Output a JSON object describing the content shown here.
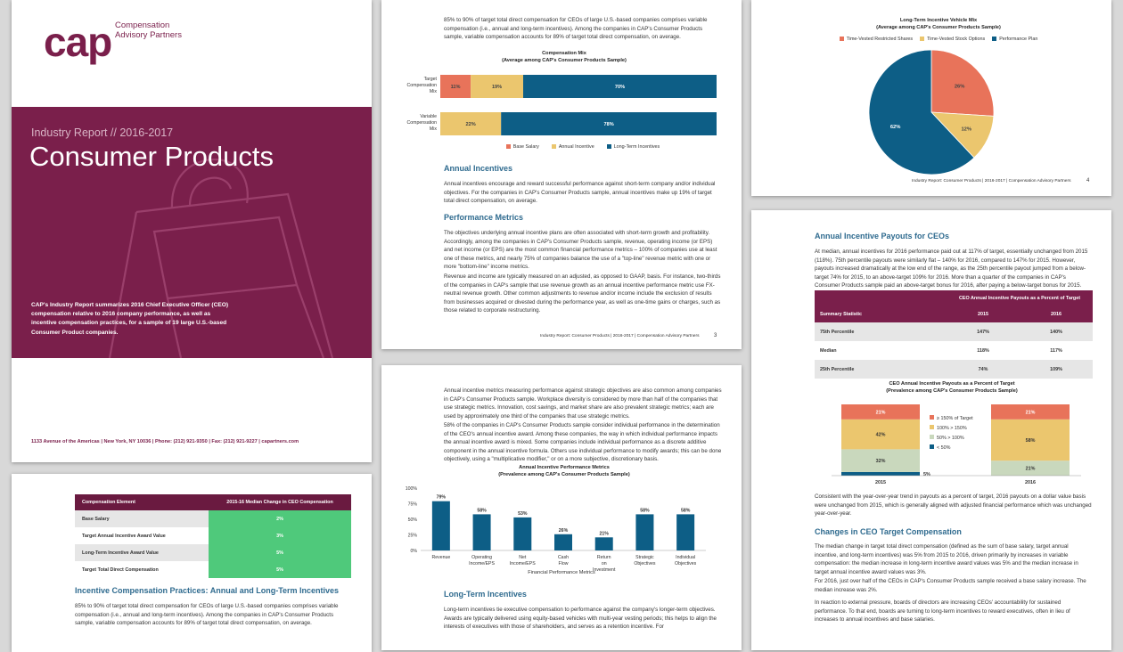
{
  "colors": {
    "brand": "#7a1f4b",
    "blue": "#0d5e86",
    "orange": "#e8735a",
    "yellow": "#ebc66e",
    "green": "#4fc97b",
    "sage": "#c9d8bd"
  },
  "cover": {
    "brand_line1": "Compensation",
    "brand_line2": "Advisory Partners",
    "logo": "cap",
    "kicker": "Industry Report // 2016-2017",
    "title": "Consumer Products",
    "summary": "CAP's Industry Report summarizes 2016 Chief Executive Officer (CEO) compensation relative to 2016 company performance, as well as incentive compensation practices, for a sample of 19 large U.S.-based Consumer Product companies.",
    "address": "1133 Avenue of the Americas | New York, NY 10036 | Phone: (212) 921-9350 | Fax: (212) 921-9227 | capartners.com"
  },
  "p2": {
    "table_headers": [
      "Compensation Element",
      "2015-16 Median Change in CEO Compensation"
    ],
    "rows": [
      [
        "Base Salary",
        "2%"
      ],
      [
        "Target Annual Incentive Award Value",
        "3%"
      ],
      [
        "Long-Term Incentive Award Value",
        "5%"
      ],
      [
        "Target Total Direct Compensation",
        "5%"
      ]
    ],
    "heading": "Incentive Compensation Practices: Annual and Long-Term Incentives",
    "para": "85% to 90% of target total direct compensation for CEOs of large U.S.-based companies comprises variable compensation (i.e., annual and long-term incentives). Among the companies in CAP's Consumer Products sample, variable compensation accounts for 89% of target total direct compensation, on average."
  },
  "p3": {
    "intro": "85% to 90% of target total direct compensation for CEOs of large U.S.-based companies comprises variable compensation (i.e., annual and long-term incentives). Among the companies in CAP's Consumer Products sample, variable compensation accounts for 89% of target total direct compensation, on average.",
    "chart_title": "Compensation Mix",
    "chart_subtitle": "(Average among CAP's Consumer Products Sample)",
    "h_annual": "Annual Incentives",
    "annual_para": "Annual incentives encourage and reward successful performance against short-term company and/or individual objectives. For the companies in CAP's Consumer Products sample, annual incentives make up 19% of target total direct compensation, on average.",
    "h_perf": "Performance Metrics",
    "perf_para1": "The objectives underlying annual incentive plans are often associated with short-term growth and profitability. Accordingly, among the companies in CAP's Consumer Products sample, revenue, operating income (or EPS) and net income (or EPS) are the most common financial performance metrics – 100% of companies use at least one of these metrics, and nearly 75% of companies balance the use of a \"top-line\" revenue metric with one or more \"bottom-line\" income metrics.",
    "perf_para2": "Revenue and income are typically measured on an adjusted, as opposed to GAAP, basis. For instance, two-thirds of the companies in CAP's sample that use revenue growth as an annual incentive performance metric use FX-neutral revenue growth. Other common adjustments to revenue and/or income include the exclusion of results from businesses acquired or divested during the performance year, as well as one-time gains or charges, such as those related to corporate restructuring.",
    "footer": "Industry Report: Consumer Products  |  2016-2017  |  Compensation Advisory Partners",
    "page": "3"
  },
  "p5": {
    "para1": "Annual incentive metrics measuring performance against strategic objectives are also common among companies in CAP's Consumer Products sample. Workplace diversity is considered by more than half of the companies that use strategic metrics. Innovation, cost savings, and market share are also prevalent strategic metrics; each are used by approximately one third of the companies that use strategic metrics.",
    "para2": "58% of the companies in CAP's Consumer Products sample consider individual performance in the determination of the CEO's annual incentive award. Among these companies, the way in which individual performance impacts the annual incentive award is mixed. Some companies include individual performance as a discrete additive component in the annual incentive formula. Others use individual performance to modify awards; this can be done objectively, using a \"multiplicative modifier,\" or on a more subjective, discretionary basis.",
    "chart_title": "Annual Incentive Performance Metrics",
    "chart_subtitle": "(Prevalence among CAP's Consumer Products Sample)",
    "xlabel": "Financial Performance Metrics",
    "h_lti": "Long-Term Incentives",
    "lti_para": "Long-term incentives tie executive compensation to performance against the company's longer-term objectives. Awards are typically delivered using equity-based vehicles with multi-year vesting periods; this helps to align the interests of executives with those of shareholders, and serves as a retention incentive. For"
  },
  "p4": {
    "chart_title": "Long-Term Incentive Vehicle Mix",
    "chart_subtitle": "(Average among CAP's Consumer Products Sample)",
    "footer": "Industry Report: Consumer Products  |  2016-2017  |  Compensation Advisory Partners",
    "page": "4"
  },
  "p6": {
    "h_payouts": "Annual Incentive Payouts for CEOs",
    "payout_para": "At median, annual incentives for 2016 performance paid out at 117% of target, essentially unchanged from 2015 (118%). 75th percentile payouts were similarly flat – 140% for 2016, compared to 147% for 2015. However, payouts increased dramatically at the low end of the range, as the 25th percentile payout jumped from a below-target 74% for 2015, to an above-target 109% for 2016. More than a quarter of the companies in CAP's Consumer Products sample paid an above-target bonus for 2016, after paying a below-target bonus for 2015.",
    "table_group": "CEO Annual Incentive Payouts as a Percent of Target",
    "table_headers": [
      "Summary Statistic",
      "2015",
      "2016"
    ],
    "rows": [
      [
        "75th Percentile",
        "147%",
        "140%"
      ],
      [
        "Median",
        "118%",
        "117%"
      ],
      [
        "25th Percentile",
        "74%",
        "109%"
      ]
    ],
    "chart_title": "CEO Annual Incentive Payouts as a Percent of Target",
    "chart_subtitle": "(Prevalence among CAP's Consumer Products Sample)",
    "para_consistent": "Consistent with the year-over-year trend in payouts as a percent of target, 2016 payouts on a dollar value basis were unchanged from 2015, which is generally aligned with adjusted financial performance which was unchanged year-over-year.",
    "h_changes": "Changes in CEO Target Compensation",
    "changes_para1": "The median change in target total direct compensation (defined as the sum of base salary, target annual incentive, and long-term incentives) was 5% from 2015 to 2016, driven primarily by increases in variable compensation: the median increase in long-term incentive award values was 5% and the median increase in target annual incentive award values was 3%.",
    "changes_para2": "For 2016, just over half of the CEOs in CAP's Consumer Products sample received a base salary increase. The median increase was 2%.",
    "changes_para3": "In reaction to external pressure, boards of directors are increasing CEOs' accountability for sustained performance. To that end, boards are turning to long-term incentives to reward executives, often in lieu of increases to annual incentives and base salaries."
  },
  "chart_data": [
    {
      "type": "bar",
      "orientation": "horizontal",
      "stacked": true,
      "title": "Compensation Mix",
      "subtitle": "(Average among CAP's Consumer Products Sample)",
      "categories": [
        "Target Compensation Mix",
        "Variable Compensation Mix"
      ],
      "series": [
        {
          "name": "Base Salary",
          "values": [
            11,
            0
          ],
          "labels": [
            "11%",
            ""
          ],
          "color": "#e8735a"
        },
        {
          "name": "Annual Incentive",
          "values": [
            19,
            22
          ],
          "labels": [
            "19%",
            "22%"
          ],
          "color": "#ebc66e"
        },
        {
          "name": "Long-Term Incentives",
          "values": [
            70,
            78
          ],
          "labels": [
            "70%",
            "78%"
          ],
          "color": "#0d5e86"
        }
      ],
      "xlim": [
        0,
        100
      ]
    },
    {
      "type": "bar",
      "title": "Annual Incentive Performance Metrics",
      "subtitle": "(Prevalence among CAP's Consumer Products Sample)",
      "xlabel": "Financial Performance Metrics",
      "categories": [
        "Revenue",
        "Operating Income/EPS",
        "Net Income/EPS",
        "Cash Flow",
        "Return on Investment",
        "Strategic Objectives",
        "Individual Objectives"
      ],
      "values": [
        79,
        58,
        53,
        26,
        21,
        58,
        58
      ],
      "labels": [
        "79%",
        "58%",
        "53%",
        "26%",
        "21%",
        "58%",
        "58%"
      ],
      "yticks": [
        "100%",
        "75%",
        "50%",
        "25%",
        "0%"
      ],
      "ylim": [
        0,
        100
      ]
    },
    {
      "type": "pie",
      "title": "Long-Term Incentive Vehicle Mix",
      "subtitle": "(Average among CAP's Consumer Products Sample)",
      "labels": [
        "Time-Vested Restricted Shares",
        "Time-Vested Stock Options",
        "Performance Plan"
      ],
      "values": [
        26,
        12,
        62
      ],
      "value_labels": [
        "26%",
        "12%",
        "62%"
      ],
      "colors": [
        "#e8735a",
        "#ebc66e",
        "#0d5e86"
      ]
    },
    {
      "type": "bar",
      "stacked": true,
      "title": "CEO Annual Incentive Payouts as a Percent of Target",
      "subtitle": "(Prevalence among CAP's Consumer Products Sample)",
      "categories": [
        "2015",
        "2016"
      ],
      "series": [
        {
          "name": "< 50%",
          "values": [
            5,
            0
          ],
          "labels": [
            "5%",
            ""
          ],
          "color": "#0d5e86"
        },
        {
          "name": "50% > 100%",
          "values": [
            32,
            21
          ],
          "labels": [
            "32%",
            "21%"
          ],
          "color": "#c9d8bd"
        },
        {
          "name": "100% > 150%",
          "values": [
            42,
            58
          ],
          "labels": [
            "42%",
            "58%"
          ],
          "color": "#ebc66e"
        },
        {
          "name": "≥ 150% of Target",
          "values": [
            21,
            21
          ],
          "labels": [
            "21%",
            "21%"
          ],
          "color": "#e8735a"
        }
      ],
      "ylim": [
        0,
        100
      ]
    }
  ]
}
